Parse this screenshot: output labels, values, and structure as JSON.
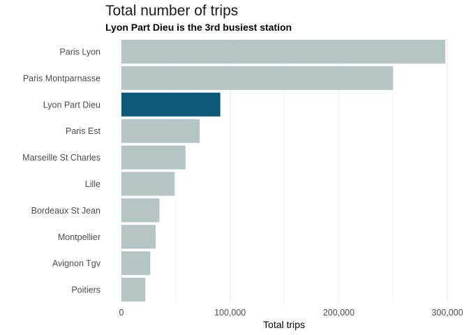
{
  "chart_data": {
    "type": "bar",
    "orientation": "horizontal",
    "title": "Total number of trips",
    "subtitle": "Lyon Part Dieu is the 3rd busiest station",
    "xlabel": "Total trips",
    "ylabel": "",
    "categories": [
      "Paris Lyon",
      "Paris Montparnasse",
      "Lyon Part Dieu",
      "Paris Est",
      "Marseille St Charles",
      "Lille",
      "Bordeaux St Jean",
      "Montpellier",
      "Avignon Tgv",
      "Poitiers"
    ],
    "values": [
      298000,
      250000,
      91000,
      72000,
      59000,
      49000,
      35000,
      31500,
      26500,
      22000
    ],
    "highlight": "Lyon Part Dieu",
    "xlim": [
      0,
      300000
    ],
    "xticks": [
      0,
      100000,
      200000,
      300000
    ],
    "xtick_labels": [
      "0",
      "100,000",
      "200,000",
      "300,000"
    ],
    "grid": true,
    "legend": "none",
    "colors": {
      "bar": "#b5c4c5",
      "highlight": "#0d5878",
      "grid": "#ebebeb"
    }
  }
}
